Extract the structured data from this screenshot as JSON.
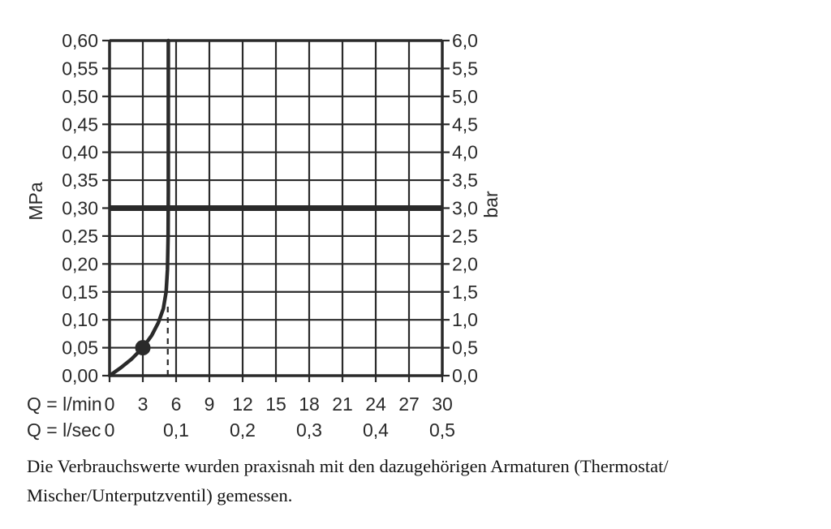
{
  "chart_data": {
    "type": "line",
    "title": "",
    "x_axis": {
      "unit_row1": "Q = l/min",
      "unit_row2": "Q = l/sec",
      "lmin_values": [
        0,
        3,
        6,
        9,
        12,
        15,
        18,
        21,
        24,
        27,
        30
      ],
      "lmin_ticks": [
        "0",
        "3",
        "6",
        "9",
        "12",
        "15",
        "18",
        "21",
        "24",
        "27",
        "30"
      ],
      "lsec_ticks": [
        "0",
        "0,1",
        "0,2",
        "0,3",
        "0,4",
        "0,5"
      ],
      "lsec_positions_lmin": [
        0,
        6,
        12,
        18,
        24,
        30
      ],
      "range_lmin": [
        0,
        30
      ]
    },
    "y_left": {
      "unit": "MPa",
      "ticks": [
        "0,60",
        "0,55",
        "0,50",
        "0,45",
        "0,40",
        "0,35",
        "0,30",
        "0,25",
        "0,20",
        "0,15",
        "0,10",
        "0,05",
        "0,00"
      ],
      "range_mpa": [
        0,
        0.6
      ]
    },
    "y_right": {
      "unit": "bar",
      "ticks": [
        "6,0",
        "5,5",
        "5,0",
        "4,5",
        "4,0",
        "3,5",
        "3,0",
        "2,5",
        "2,0",
        "1,5",
        "1,0",
        "0,5",
        "0,0"
      ],
      "range_bar": [
        0,
        6
      ]
    },
    "grid": {
      "on": true,
      "x_step_lmin": 3,
      "y_step_mpa": 0.05
    },
    "pressure_reference_line": {
      "value_mpa": 0.3,
      "value_bar": 3.0
    },
    "flow_curve": {
      "points_lmin_mpa": [
        [
          0,
          0
        ],
        [
          1,
          0.014
        ],
        [
          2,
          0.03
        ],
        [
          3,
          0.05
        ],
        [
          3.8,
          0.072
        ],
        [
          4.4,
          0.095
        ],
        [
          4.85,
          0.12
        ],
        [
          5.1,
          0.15
        ],
        [
          5.22,
          0.19
        ],
        [
          5.28,
          0.25
        ],
        [
          5.3,
          0.33
        ],
        [
          5.3,
          0.6
        ]
      ],
      "marker_point_lmin_mpa": [
        3,
        0.05
      ]
    },
    "dashed_guide": {
      "x_lmin": 5.25,
      "from_mpa": 0,
      "to_mpa": 0.13
    }
  },
  "caption": {
    "line1": "Die Verbrauchswerte wurden praxisnah mit den dazugehörigen Armaturen (Thermostat/",
    "line2": "Mischer/Unterputzventil) gemessen."
  },
  "colors": {
    "ink": "#2a2a2a",
    "grid": "#2a2a2a",
    "background": "#ffffff"
  }
}
